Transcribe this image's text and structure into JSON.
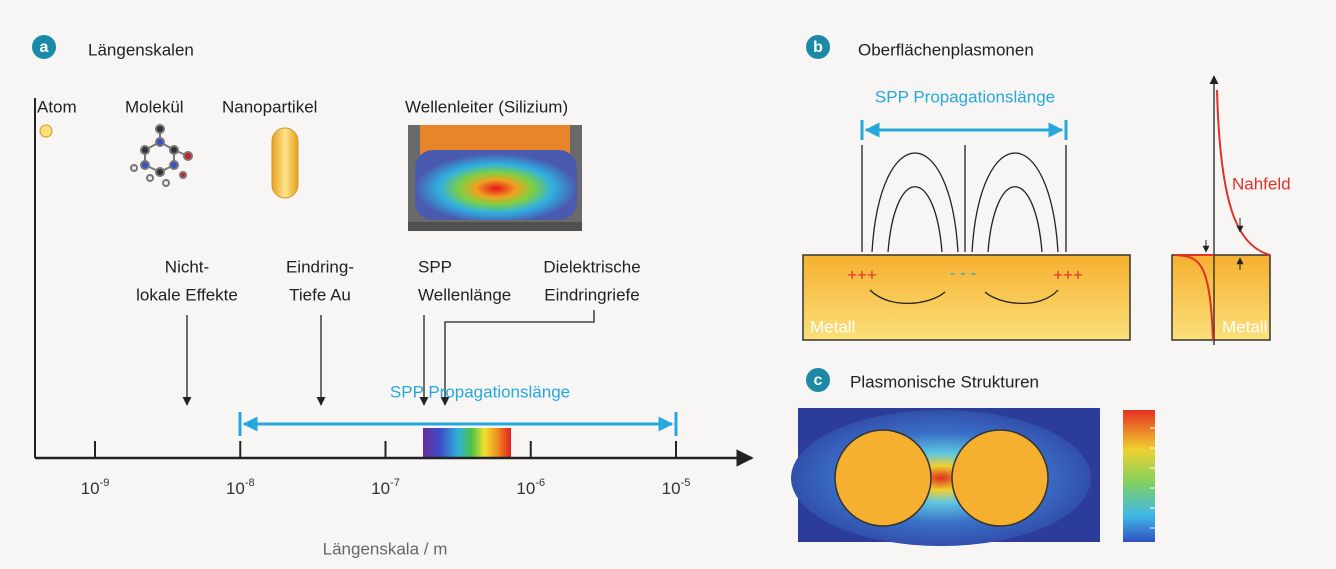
{
  "panel_a": {
    "label": "a",
    "title": "Längenskalen",
    "items": [
      {
        "label": "Atom"
      },
      {
        "label": "Molekül"
      },
      {
        "label": "Nanopartikel"
      },
      {
        "label": "Wellenleiter (Silizium)"
      }
    ],
    "annotations": [
      {
        "lines": [
          "Nicht-",
          "lokale Effekte"
        ]
      },
      {
        "lines": [
          "Eindring-",
          "Tiefe Au"
        ]
      },
      {
        "lines": [
          "SPP",
          "Wellenlänge"
        ]
      },
      {
        "lines": [
          "Dielektrische",
          "Eindringriefe"
        ]
      }
    ],
    "propagation_label": "SPP Propagationslänge",
    "ticks": [
      {
        "base": "10",
        "exponent": "-9"
      },
      {
        "base": "10",
        "exponent": "-8"
      },
      {
        "base": "10",
        "exponent": "-7"
      },
      {
        "base": "10",
        "exponent": "-6"
      },
      {
        "base": "10",
        "exponent": "-5"
      }
    ],
    "axis_label": "Längenskala / m"
  },
  "panel_b": {
    "label": "b",
    "title": "Oberflächenplasmonen",
    "propagation_label": "SPP Propagationslänge",
    "charges": [
      "+++",
      "- - -",
      "+++"
    ],
    "metal_label": "Metall",
    "nearfield_label": "Nahfeld",
    "metal_label_right": "Metall"
  },
  "panel_c": {
    "label": "c",
    "title": "Plasmonische Strukturen"
  }
}
